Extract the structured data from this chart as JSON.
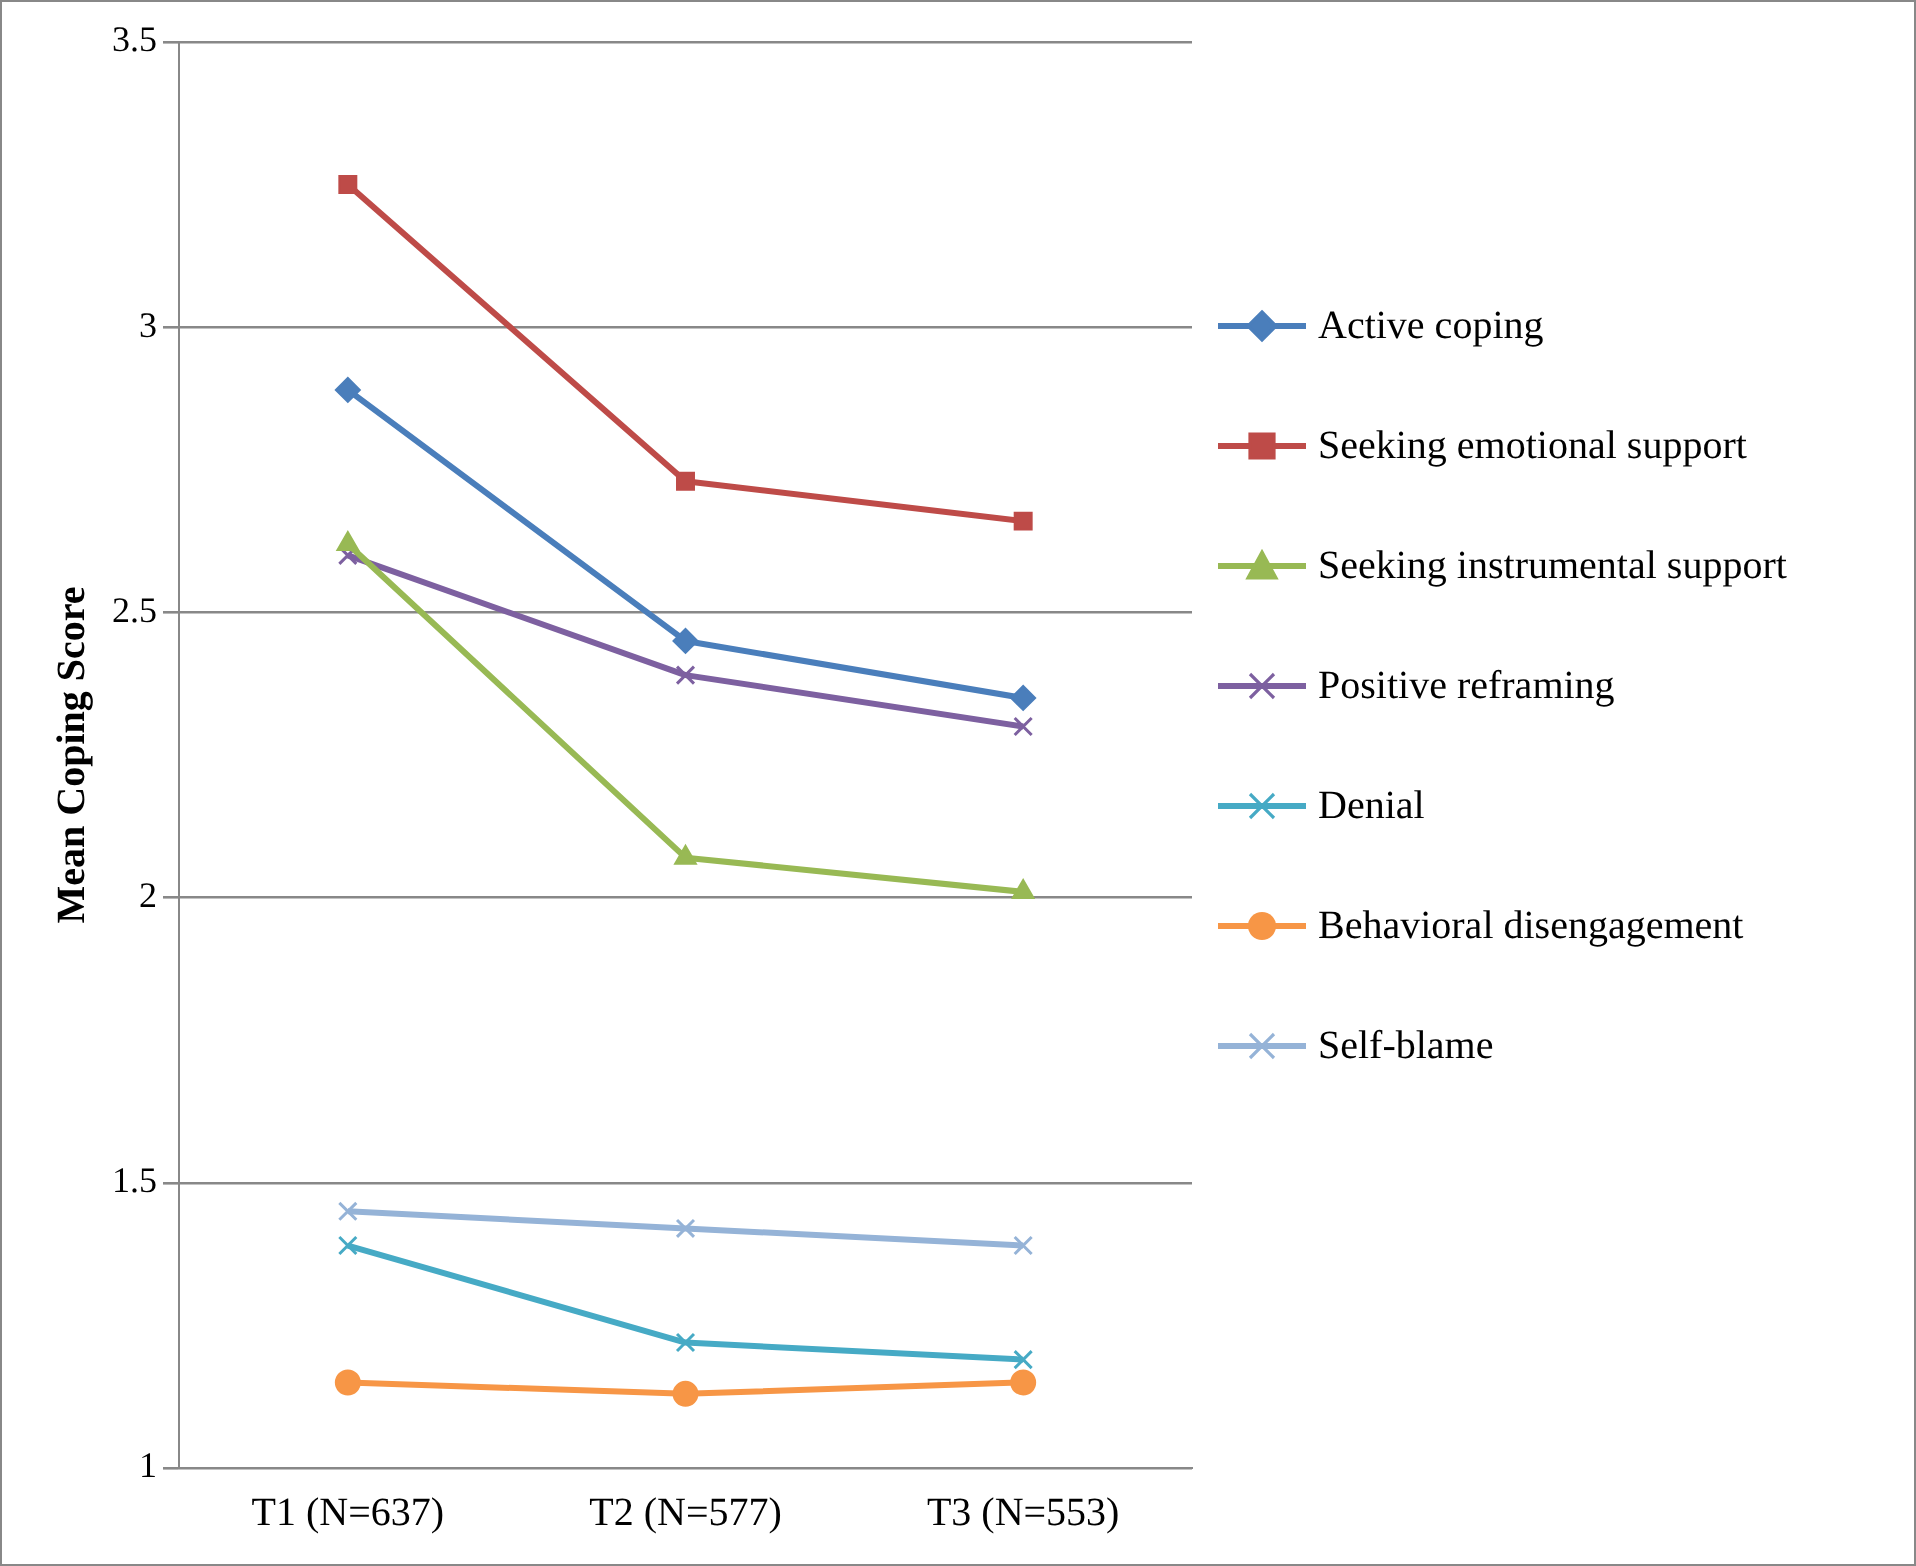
{
  "chart_data": {
    "type": "line",
    "ylabel": "Mean Coping Score",
    "categories": [
      "T1 (N=637)",
      "T2 (N=577)",
      "T3 (N=553)"
    ],
    "ylim": [
      1,
      3.5
    ],
    "yticks": [
      1,
      1.5,
      2,
      2.5,
      3,
      3.5
    ],
    "grid": "y",
    "legend": "right",
    "line_style": "solid",
    "series": [
      {
        "name": "Active coping",
        "color": "#4a7ebb",
        "marker": "diamond",
        "values": [
          2.89,
          2.45,
          2.35
        ]
      },
      {
        "name": "Seeking emotional support",
        "color": "#be4b48",
        "marker": "square",
        "values": [
          3.25,
          2.73,
          2.66
        ]
      },
      {
        "name": "Seeking instrumental support",
        "color": "#98b954",
        "marker": "triangle",
        "values": [
          2.62,
          2.07,
          2.01
        ]
      },
      {
        "name": "Positive reframing",
        "color": "#7d60a0",
        "marker": "cross",
        "values": [
          2.6,
          2.39,
          2.3
        ]
      },
      {
        "name": "Denial",
        "color": "#46aac5",
        "marker": "cross",
        "values": [
          1.39,
          1.22,
          1.19
        ]
      },
      {
        "name": "Behavioral disengagement",
        "color": "#f79646",
        "marker": "circle",
        "values": [
          1.15,
          1.13,
          1.15
        ]
      },
      {
        "name": "Self-blame",
        "color": "#95b3d7",
        "marker": "cross",
        "values": [
          1.45,
          1.42,
          1.39
        ]
      }
    ]
  }
}
